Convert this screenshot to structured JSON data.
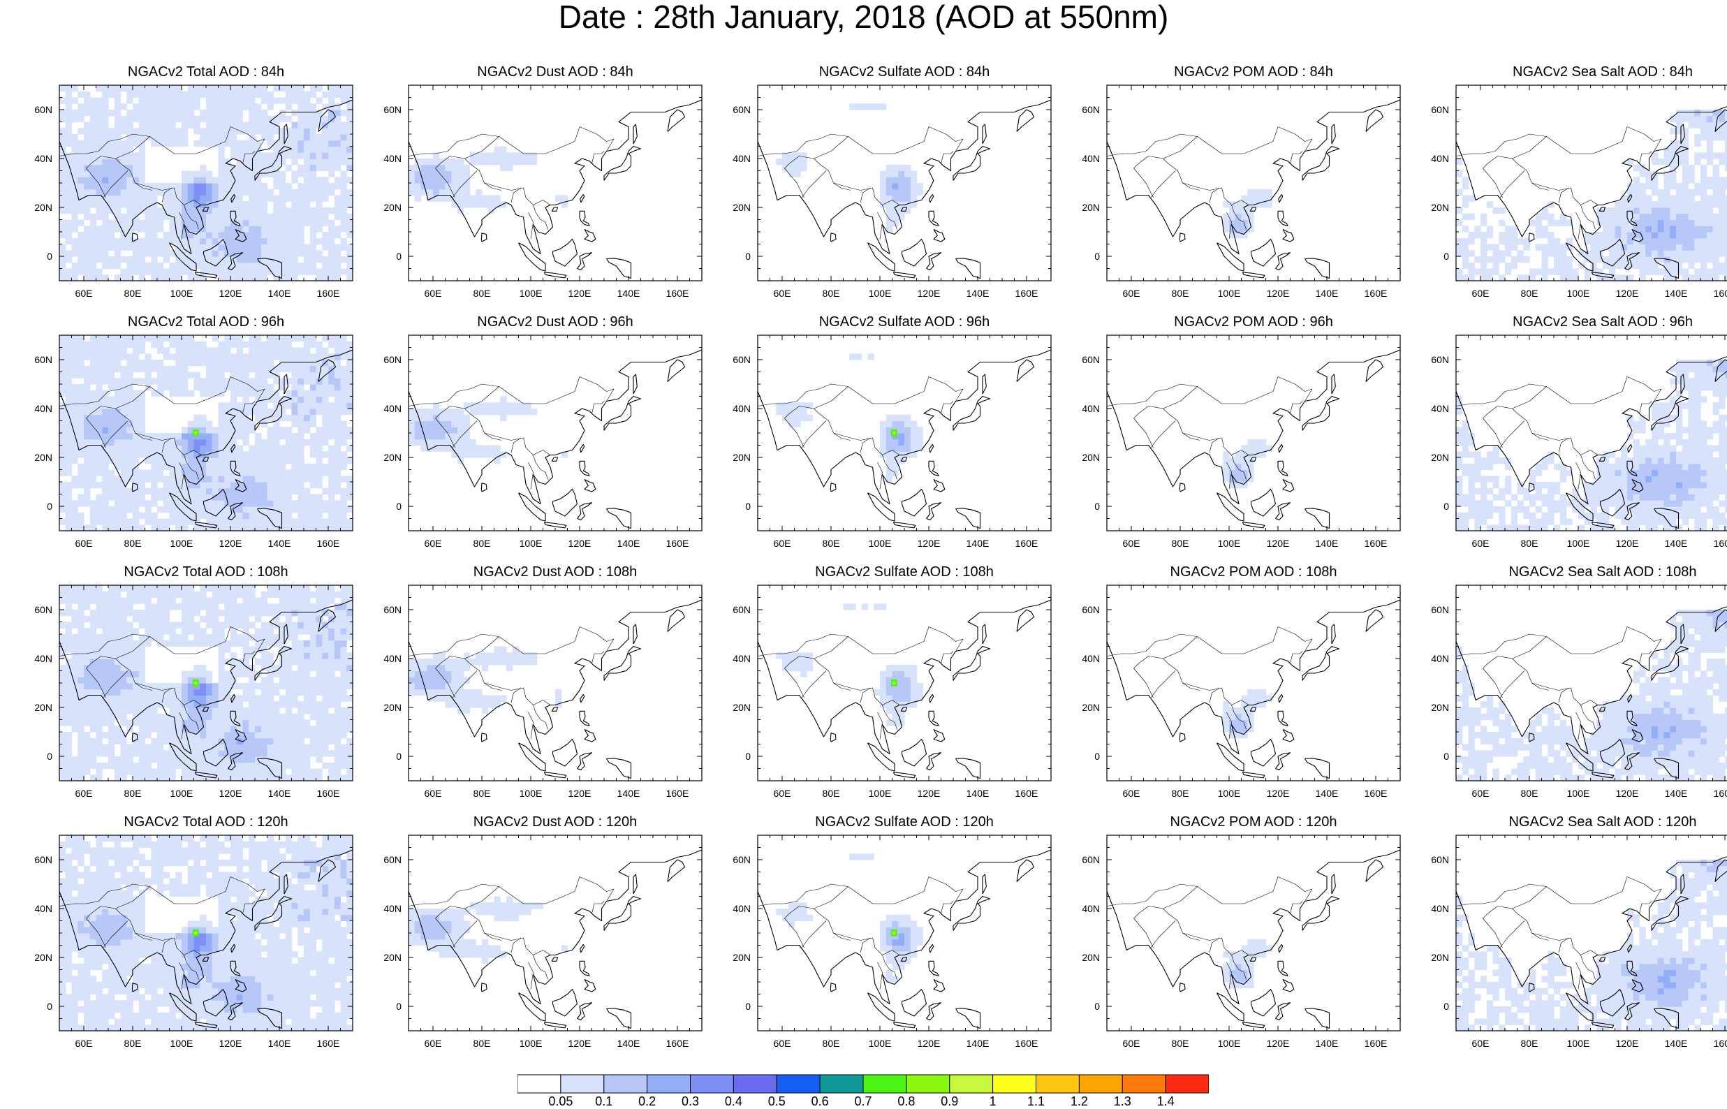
{
  "title": "Date : 28th January, 2018 (AOD at 550nm)",
  "map_extent": {
    "lon": [
      50,
      170
    ],
    "lat": [
      -10,
      70
    ]
  },
  "lon_tick_labels": [
    "60E",
    "80E",
    "100E",
    "120E",
    "140E",
    "160E"
  ],
  "lat_tick_labels": [
    "60N",
    "40N",
    "20N",
    "0"
  ],
  "panels": [
    {
      "title": "NGACv2 Total AOD : 84h",
      "species": "total"
    },
    {
      "title": "NGACv2 Dust AOD : 84h",
      "species": "dust"
    },
    {
      "title": "NGACv2 Sulfate AOD : 84h",
      "species": "sulfate"
    },
    {
      "title": "NGACv2 POM AOD : 84h",
      "species": "pom"
    },
    {
      "title": "NGACv2 Sea Salt AOD : 84h",
      "species": "seasalt"
    },
    {
      "title": "NGACv2 Total AOD : 96h",
      "species": "total"
    },
    {
      "title": "NGACv2 Dust AOD : 96h",
      "species": "dust"
    },
    {
      "title": "NGACv2 Sulfate AOD : 96h",
      "species": "sulfate"
    },
    {
      "title": "NGACv2 POM AOD : 96h",
      "species": "pom"
    },
    {
      "title": "NGACv2 Sea Salt AOD : 96h",
      "species": "seasalt"
    },
    {
      "title": "NGACv2 Total AOD : 108h",
      "species": "total"
    },
    {
      "title": "NGACv2 Dust AOD : 108h",
      "species": "dust"
    },
    {
      "title": "NGACv2 Sulfate AOD : 108h",
      "species": "sulfate"
    },
    {
      "title": "NGACv2 POM AOD : 108h",
      "species": "pom"
    },
    {
      "title": "NGACv2 Sea Salt AOD : 108h",
      "species": "seasalt"
    },
    {
      "title": "NGACv2 Total AOD : 120h",
      "species": "total"
    },
    {
      "title": "NGACv2 Dust AOD : 120h",
      "species": "dust"
    },
    {
      "title": "NGACv2 Sulfate AOD : 120h",
      "species": "sulfate"
    },
    {
      "title": "NGACv2 POM AOD : 120h",
      "species": "pom"
    },
    {
      "title": "NGACv2 Sea Salt  AOD : 120h",
      "species": "seasalt"
    }
  ],
  "colorbar": {
    "levels": [
      "0.05",
      "0.1",
      "0.2",
      "0.3",
      "0.4",
      "0.5",
      "0.6",
      "0.7",
      "0.8",
      "0.9",
      "1",
      "1.1",
      "1.2",
      "1.3",
      "1.4"
    ],
    "colors": [
      "#ffffff",
      "#d9e2fb",
      "#b6c7f8",
      "#93aef7",
      "#7f8ff5",
      "#6a6cf0",
      "#1560f0",
      "#0e9a97",
      "#4ef414",
      "#8af70d",
      "#c8f73e",
      "#ffff1a",
      "#ffc60d",
      "#ffa500",
      "#ff7a0a",
      "#ff2a12"
    ]
  }
}
